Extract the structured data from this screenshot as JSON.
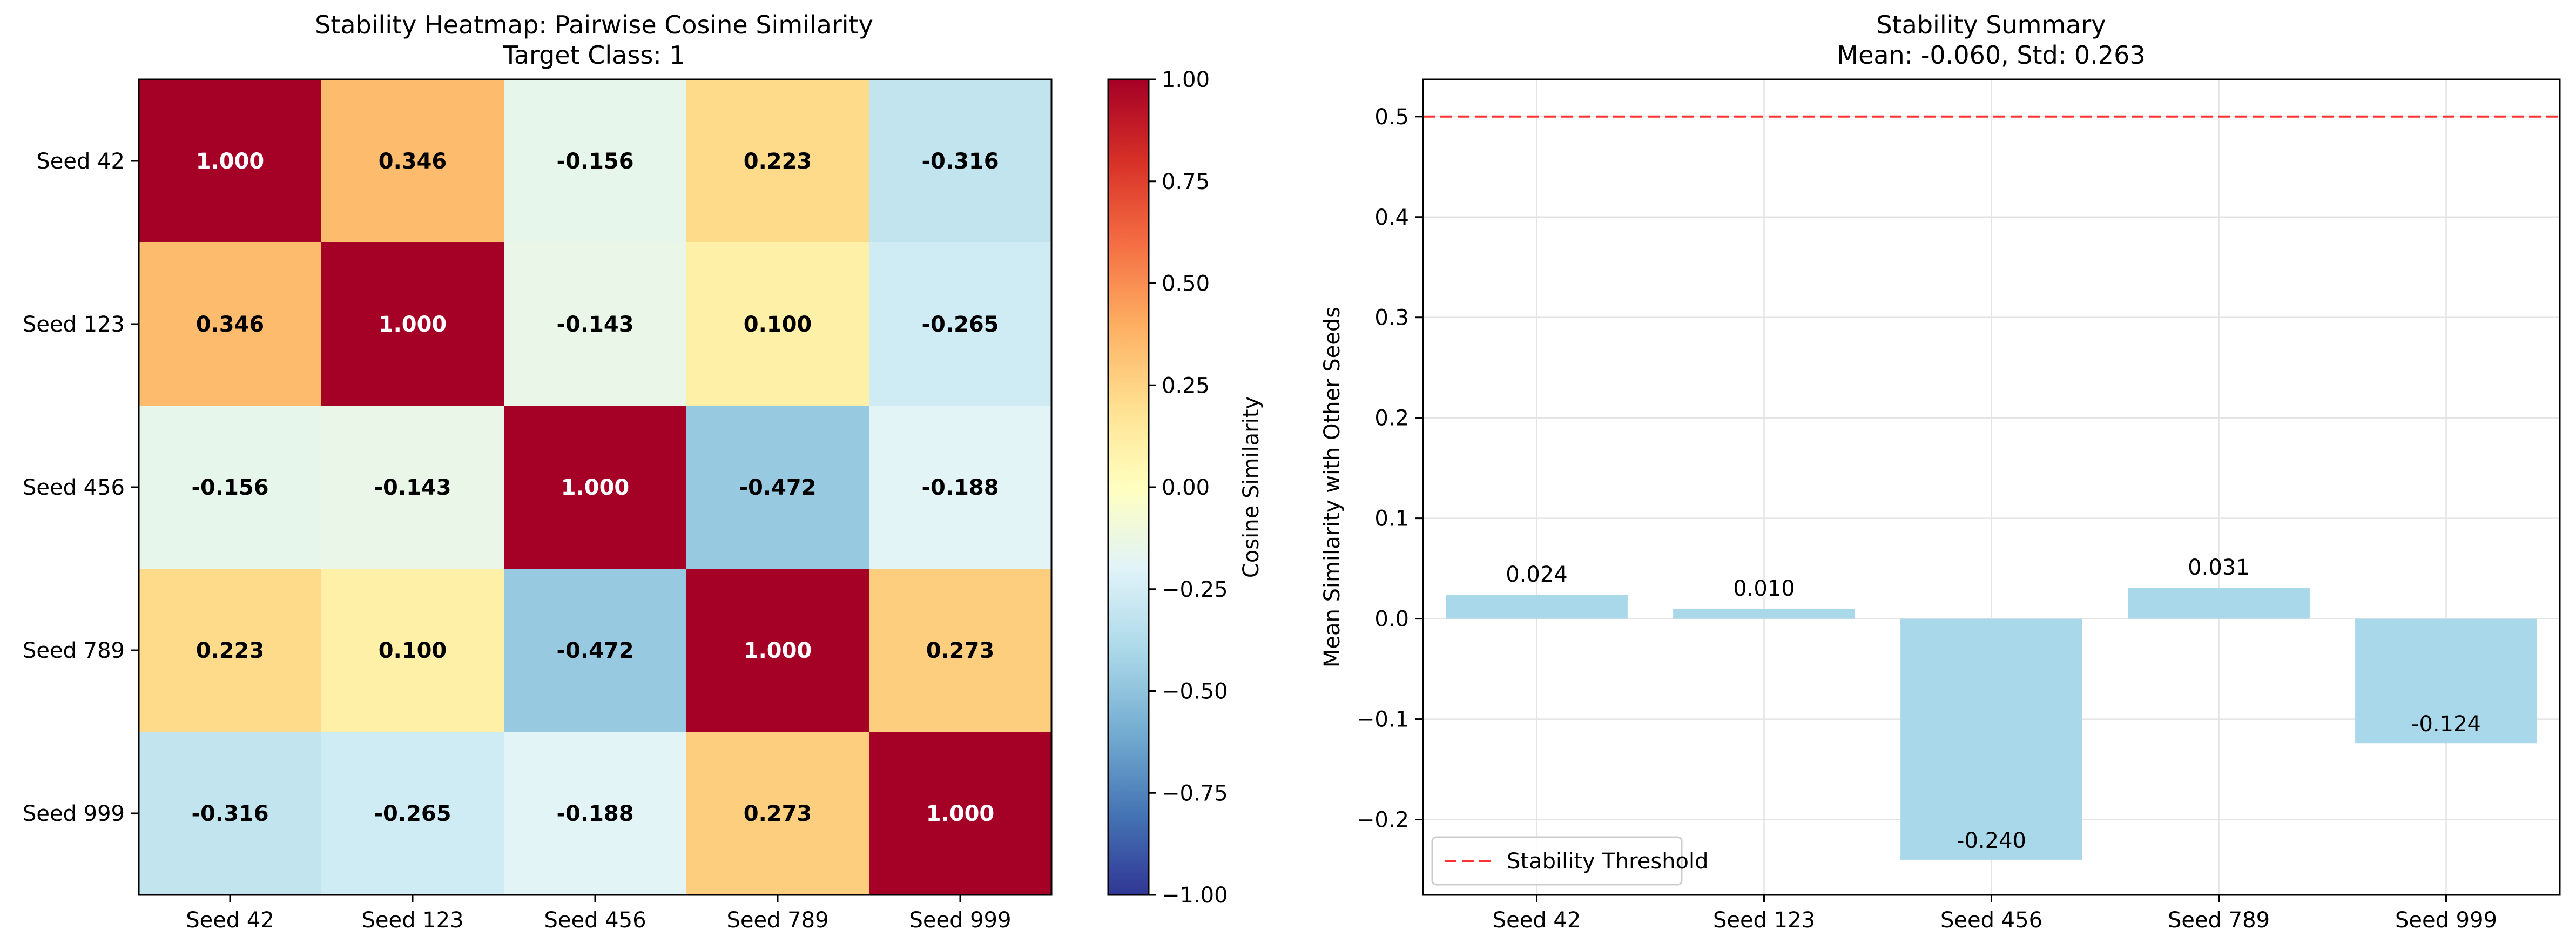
{
  "chart_data": [
    {
      "type": "heatmap",
      "title": "Stability Heatmap: Pairwise Cosine Similarity",
      "subtitle": "Target Class: 1",
      "row_labels": [
        "Seed 42",
        "Seed 123",
        "Seed 456",
        "Seed 789",
        "Seed 999"
      ],
      "col_labels": [
        "Seed 42",
        "Seed 123",
        "Seed 456",
        "Seed 789",
        "Seed 999"
      ],
      "values": [
        [
          1.0,
          0.346,
          -0.156,
          0.223,
          -0.316
        ],
        [
          0.346,
          1.0,
          -0.143,
          0.1,
          -0.265
        ],
        [
          -0.156,
          -0.143,
          1.0,
          -0.472,
          -0.188
        ],
        [
          0.223,
          0.1,
          -0.472,
          1.0,
          0.273
        ],
        [
          -0.316,
          -0.265,
          -0.188,
          0.273,
          1.0
        ]
      ],
      "cell_labels": [
        [
          "1.000",
          "0.346",
          "-0.156",
          "0.223",
          "-0.316"
        ],
        [
          "0.346",
          "1.000",
          "-0.143",
          "0.100",
          "-0.265"
        ],
        [
          "-0.156",
          "-0.143",
          "1.000",
          "-0.472",
          "-0.188"
        ],
        [
          "0.223",
          "0.100",
          "-0.472",
          "1.000",
          "0.273"
        ],
        [
          "-0.316",
          "-0.265",
          "-0.188",
          "0.273",
          "1.000"
        ]
      ],
      "colormap": "RdYlBu_r",
      "vmin": -1.0,
      "vmax": 1.0,
      "colorbar": {
        "label": "Cosine Similarity",
        "ticks": [
          1.0,
          0.75,
          0.5,
          0.25,
          0.0,
          -0.25,
          -0.5,
          -0.75,
          -1.0
        ],
        "tick_labels": [
          "1.00",
          "0.75",
          "0.50",
          "0.25",
          "0.00",
          "−0.25",
          "−0.50",
          "−0.75",
          "−1.00"
        ]
      }
    },
    {
      "type": "bar",
      "title": "Stability Summary",
      "subtitle": "Mean: -0.060, Std: 0.263",
      "categories": [
        "Seed 42",
        "Seed 123",
        "Seed 456",
        "Seed 789",
        "Seed 999"
      ],
      "values": [
        0.024,
        0.01,
        -0.24,
        0.031,
        -0.124
      ],
      "value_labels": [
        "0.024",
        "0.010",
        "-0.240",
        "0.031",
        "-0.124"
      ],
      "ylabel": "Mean Similarity with Other Seeds",
      "xlabel": "",
      "ylim": [
        -0.275,
        0.537
      ],
      "yticks": [
        0.5,
        0.4,
        0.3,
        0.2,
        0.1,
        0.0,
        -0.1,
        -0.2
      ],
      "ytick_labels": [
        "0.5",
        "0.4",
        "0.3",
        "0.2",
        "0.1",
        "0.0",
        "−0.1",
        "−0.2"
      ],
      "bar_color": "#a8d8ea",
      "threshold": {
        "value": 0.5,
        "label": "Stability Threshold",
        "color": "#ff3333"
      },
      "grid": true,
      "legend_position": "lower-left"
    }
  ]
}
